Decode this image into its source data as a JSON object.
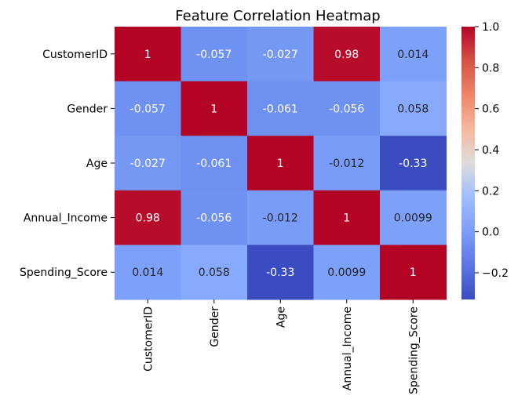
{
  "chart_data": {
    "type": "heatmap",
    "title": "Feature Correlation Heatmap",
    "rows": [
      "CustomerID",
      "Gender",
      "Age",
      "Annual_Income",
      "Spending_Score"
    ],
    "columns": [
      "CustomerID",
      "Gender",
      "Age",
      "Annual_Income",
      "Spending_Score"
    ],
    "values": [
      [
        1,
        -0.057,
        -0.027,
        0.98,
        0.014
      ],
      [
        -0.057,
        1,
        -0.061,
        -0.056,
        0.058
      ],
      [
        -0.027,
        -0.061,
        1,
        -0.012,
        -0.33
      ],
      [
        0.98,
        -0.056,
        -0.012,
        1,
        0.0099
      ],
      [
        0.014,
        0.058,
        -0.33,
        0.0099,
        1
      ]
    ],
    "labels": [
      [
        "1",
        "-0.057",
        "-0.027",
        "0.98",
        "0.014"
      ],
      [
        "-0.057",
        "1",
        "-0.061",
        "-0.056",
        "0.058"
      ],
      [
        "-0.027",
        "-0.061",
        "1",
        "-0.012",
        "-0.33"
      ],
      [
        "0.98",
        "-0.056",
        "-0.012",
        "1",
        "0.0099"
      ],
      [
        "0.014",
        "0.058",
        "-0.33",
        "0.0099",
        "1"
      ]
    ],
    "colorscale": "coolwarm",
    "vmin": -0.33,
    "vmax": 1.0,
    "colorbar_ticks": [
      1.0,
      0.8,
      0.6,
      0.4,
      0.2,
      0.0,
      -0.2
    ],
    "colorbar_tick_labels": [
      "1.0",
      "0.8",
      "0.6",
      "0.4",
      "0.2",
      "0.0",
      "−0.2"
    ]
  }
}
